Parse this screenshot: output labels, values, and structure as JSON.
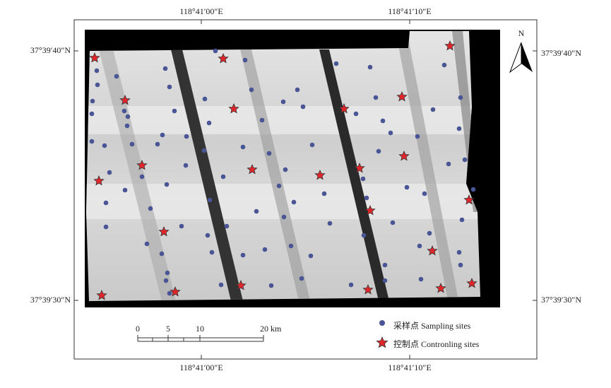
{
  "map": {
    "top_labels": [
      "118°41′00″E",
      "118°41′10″E"
    ],
    "bottom_labels": [
      "118°41′00″E",
      "118°41′10″E"
    ],
    "left_labels": [
      "37°39′40″N",
      "37°39′30″N"
    ],
    "right_labels": [
      "37°39′40″N",
      "37°39′30″N"
    ],
    "north": "N",
    "scale_labels": [
      "0",
      "5",
      "10",
      "20 km"
    ],
    "legend": [
      "采样点 Sampling sites",
      "控制点 Contronling sites"
    ]
  }
}
